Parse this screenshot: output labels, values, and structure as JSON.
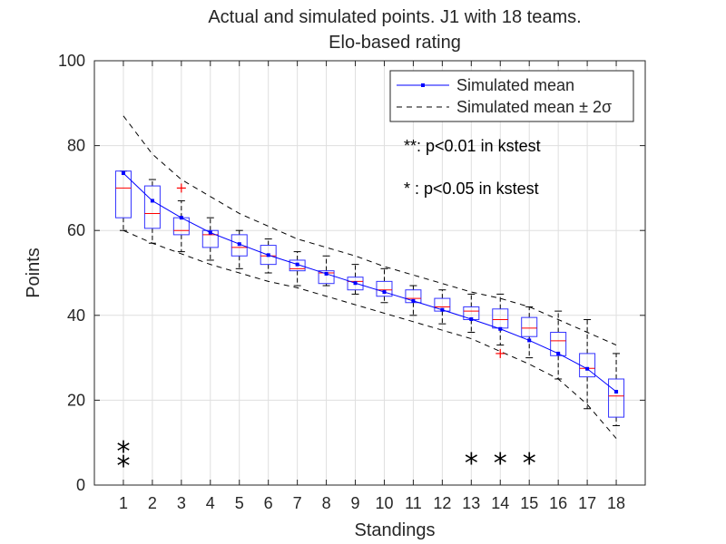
{
  "chart_data": {
    "type": "box",
    "title_line1": "Actual and simulated points. J1 with 18 teams.",
    "title_line2": "Elo-based rating",
    "xlabel": "Standings",
    "ylabel": "Points",
    "xlim": [
      0,
      19
    ],
    "ylim": [
      0,
      100
    ],
    "xticks": [
      1,
      2,
      3,
      4,
      5,
      6,
      7,
      8,
      9,
      10,
      11,
      12,
      13,
      14,
      15,
      16,
      17,
      18
    ],
    "yticks": [
      0,
      20,
      40,
      60,
      80,
      100
    ],
    "grid": true,
    "legend": {
      "position": "top-right",
      "entries": [
        "Simulated mean",
        "Simulated mean ± 2σ"
      ]
    },
    "annotations": [
      "**: p<0.01 in kstest",
      "* : p<0.05 in kstest"
    ],
    "colors": {
      "box": "#3333ff",
      "median": "#ff0000",
      "mean": "#0000ff",
      "band": "#000000",
      "outlier": "#ff0000"
    },
    "series": [
      {
        "name": "Simulated mean",
        "x": [
          1,
          2,
          3,
          4,
          5,
          6,
          7,
          8,
          9,
          10,
          11,
          12,
          13,
          14,
          15,
          16,
          17,
          18
        ],
        "values": [
          73.5,
          67,
          63,
          59.5,
          56.8,
          54.2,
          52,
          49.8,
          47.6,
          45.5,
          43.4,
          41.3,
          39.1,
          36.8,
          34.1,
          31,
          27.4,
          22
        ]
      },
      {
        "name": "Simulated mean + 2σ",
        "x": [
          1,
          2,
          3,
          4,
          5,
          6,
          7,
          8,
          9,
          10,
          11,
          12,
          13,
          14,
          15,
          16,
          17,
          18
        ],
        "values": [
          87,
          78,
          72,
          68,
          64,
          61,
          58,
          56,
          54,
          51.5,
          49.5,
          47.5,
          45.5,
          44,
          42,
          39,
          36,
          33
        ]
      },
      {
        "name": "Simulated mean - 2σ",
        "x": [
          1,
          2,
          3,
          4,
          5,
          6,
          7,
          8,
          9,
          10,
          11,
          12,
          13,
          14,
          15,
          16,
          17,
          18
        ],
        "values": [
          60,
          57,
          54.5,
          52,
          50,
          48,
          46.5,
          44.5,
          42.5,
          40.5,
          38.5,
          36.5,
          34.5,
          31.5,
          28.5,
          25,
          19,
          11
        ]
      }
    ],
    "boxes": [
      {
        "x": 1,
        "q1": 63,
        "median": 70,
        "q3": 74,
        "whisker_low": 60,
        "whisker_high": 74,
        "outliers": []
      },
      {
        "x": 2,
        "q1": 60.5,
        "median": 64,
        "q3": 70.5,
        "whisker_low": 57,
        "whisker_high": 72,
        "outliers": []
      },
      {
        "x": 3,
        "q1": 59,
        "median": 60,
        "q3": 63,
        "whisker_low": 55,
        "whisker_high": 67,
        "outliers": [
          70
        ]
      },
      {
        "x": 4,
        "q1": 56,
        "median": 59,
        "q3": 60,
        "whisker_low": 53,
        "whisker_high": 63,
        "outliers": []
      },
      {
        "x": 5,
        "q1": 54,
        "median": 56,
        "q3": 59,
        "whisker_low": 51,
        "whisker_high": 60,
        "outliers": []
      },
      {
        "x": 6,
        "q1": 52,
        "median": 54,
        "q3": 56.5,
        "whisker_low": 50,
        "whisker_high": 58,
        "outliers": []
      },
      {
        "x": 7,
        "q1": 50.5,
        "median": 51,
        "q3": 53,
        "whisker_low": 47,
        "whisker_high": 55,
        "outliers": []
      },
      {
        "x": 8,
        "q1": 47.5,
        "median": 50,
        "q3": 50.5,
        "whisker_low": 47,
        "whisker_high": 54,
        "outliers": []
      },
      {
        "x": 9,
        "q1": 46,
        "median": 48,
        "q3": 49,
        "whisker_low": 45,
        "whisker_high": 52,
        "outliers": []
      },
      {
        "x": 10,
        "q1": 44.5,
        "median": 46,
        "q3": 48,
        "whisker_low": 43,
        "whisker_high": 51,
        "outliers": []
      },
      {
        "x": 11,
        "q1": 43,
        "median": 44,
        "q3": 46,
        "whisker_low": 40,
        "whisker_high": 47,
        "outliers": []
      },
      {
        "x": 12,
        "q1": 41,
        "median": 42,
        "q3": 44,
        "whisker_low": 38,
        "whisker_high": 46,
        "outliers": []
      },
      {
        "x": 13,
        "q1": 39,
        "median": 41,
        "q3": 42,
        "whisker_low": 36,
        "whisker_high": 45,
        "outliers": []
      },
      {
        "x": 14,
        "q1": 37,
        "median": 39,
        "q3": 41.5,
        "whisker_low": 33,
        "whisker_high": 45,
        "outliers": [
          31
        ]
      },
      {
        "x": 15,
        "q1": 35,
        "median": 37,
        "q3": 39.5,
        "whisker_low": 30,
        "whisker_high": 42,
        "outliers": []
      },
      {
        "x": 16,
        "q1": 30.5,
        "median": 34,
        "q3": 36,
        "whisker_low": 25,
        "whisker_high": 41,
        "outliers": []
      },
      {
        "x": 17,
        "q1": 25.5,
        "median": 27.5,
        "q3": 31,
        "whisker_low": 18,
        "whisker_high": 39,
        "outliers": []
      },
      {
        "x": 18,
        "q1": 16,
        "median": 21,
        "q3": 25,
        "whisker_low": 14,
        "whisker_high": 31,
        "outliers": []
      }
    ],
    "significance": [
      {
        "x": 1,
        "label": "**"
      },
      {
        "x": 13,
        "label": "*"
      },
      {
        "x": 14,
        "label": "*"
      },
      {
        "x": 15,
        "label": "*"
      }
    ]
  }
}
